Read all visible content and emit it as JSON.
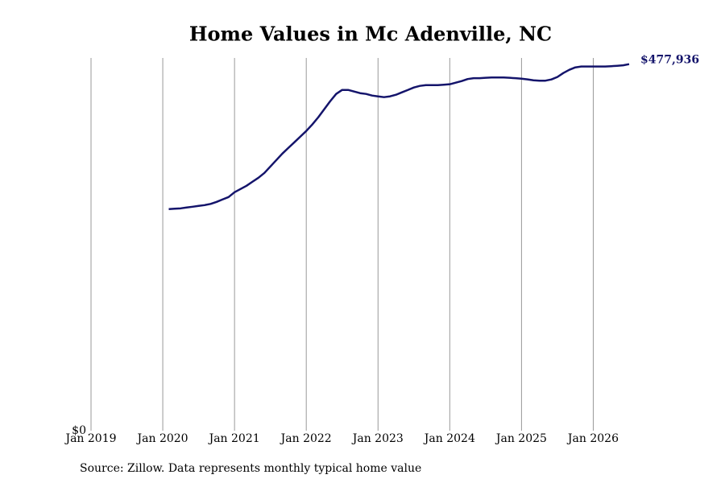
{
  "chart_data": {
    "type": "line",
    "title": "Home Values in Mc Adenville, NC",
    "source": "Source: Zillow. Data represents monthly typical home value",
    "x": [
      "2020-02",
      "2020-03",
      "2020-04",
      "2020-05",
      "2020-06",
      "2020-07",
      "2020-08",
      "2020-09",
      "2020-10",
      "2020-11",
      "2020-12",
      "2021-01",
      "2021-02",
      "2021-03",
      "2021-04",
      "2021-05",
      "2021-06",
      "2021-07",
      "2021-08",
      "2021-09",
      "2021-10",
      "2021-11",
      "2021-12",
      "2022-01",
      "2022-02",
      "2022-03",
      "2022-04",
      "2022-05",
      "2022-06",
      "2022-07",
      "2022-08",
      "2022-09",
      "2022-10",
      "2022-11",
      "2022-12",
      "2023-01",
      "2023-02",
      "2023-03",
      "2023-04",
      "2023-05",
      "2023-06",
      "2023-07",
      "2023-08",
      "2023-09",
      "2023-10",
      "2023-11",
      "2023-12",
      "2024-01",
      "2024-02",
      "2024-03",
      "2024-04",
      "2024-05",
      "2024-06",
      "2024-07",
      "2024-08",
      "2024-09",
      "2024-10",
      "2024-11",
      "2024-12",
      "2025-01",
      "2025-02",
      "2025-03",
      "2025-04",
      "2025-05",
      "2025-06",
      "2025-07",
      "2025-08",
      "2025-09",
      "2025-10",
      "2025-11",
      "2025-12",
      "2026-01",
      "2026-02",
      "2026-03",
      "2026-04",
      "2026-05",
      "2026-06",
      "2026-07"
    ],
    "series": [
      {
        "color": "#14146b",
        "values": [
          288900,
          289400,
          289900,
          291000,
          292000,
          293100,
          294100,
          295700,
          298300,
          301500,
          304600,
          310900,
          315100,
          319300,
          324600,
          329800,
          336100,
          344500,
          352900,
          361300,
          368700,
          376000,
          383400,
          390800,
          399200,
          408600,
          419100,
          429600,
          439100,
          444300,
          444300,
          442200,
          440100,
          439100,
          437000,
          435900,
          434900,
          435900,
          438000,
          441200,
          444300,
          447500,
          449600,
          450600,
          450600,
          450600,
          451100,
          451700,
          453800,
          455900,
          458500,
          459600,
          459600,
          460100,
          460600,
          460600,
          460600,
          460100,
          459600,
          459000,
          458000,
          456900,
          456400,
          456400,
          458000,
          461200,
          466400,
          470600,
          473700,
          474800,
          474800,
          474800,
          474800,
          474800,
          475300,
          475800,
          476400,
          477936
        ],
        "value_labels": [
          null,
          null,
          null,
          null,
          null,
          null,
          null,
          null,
          null,
          null,
          null,
          null,
          null,
          null,
          null,
          null,
          null,
          null,
          null,
          null,
          null,
          null,
          null,
          null,
          null,
          null,
          null,
          null,
          null,
          null,
          null,
          null,
          null,
          null,
          null,
          null,
          null,
          null,
          null,
          null,
          null,
          null,
          null,
          null,
          null,
          null,
          null,
          null,
          null,
          null,
          null,
          null,
          null,
          null,
          null,
          null,
          null,
          null,
          null,
          null,
          null,
          null,
          null,
          null,
          null,
          null,
          null,
          null,
          null,
          null,
          null,
          null,
          null,
          null,
          null,
          null,
          null,
          "$477,936"
        ]
      }
    ],
    "xlim": [
      "2019-01",
      "2026-07"
    ],
    "xticks": [
      {
        "value": "2019-01",
        "label": "Jan 2019"
      },
      {
        "value": "2020-01",
        "label": "Jan 2020"
      },
      {
        "value": "2021-01",
        "label": "Jan 2021"
      },
      {
        "value": "2022-01",
        "label": "Jan 2022"
      },
      {
        "value": "2023-01",
        "label": "Jan 2023"
      },
      {
        "value": "2024-01",
        "label": "Jan 2024"
      },
      {
        "value": "2025-01",
        "label": "Jan 2025"
      },
      {
        "value": "2026-01",
        "label": "Jan 2026"
      }
    ],
    "ylim": [
      0,
      486000
    ],
    "yticks": [
      {
        "value": 0,
        "label": "$0"
      }
    ],
    "grid": true
  }
}
